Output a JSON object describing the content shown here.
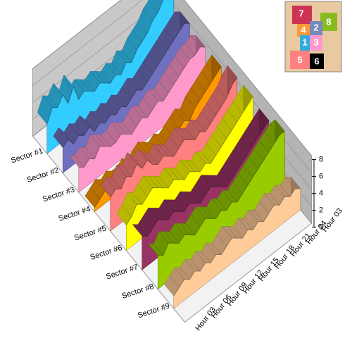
{
  "chart_data": {
    "type": "ribbon3d",
    "categories": [
      "Hour 03",
      null,
      null,
      "Hour 06",
      null,
      null,
      "Hour 09",
      null,
      null,
      "Hour 12",
      null,
      null,
      "Hour 15",
      null,
      null,
      "Hour 18",
      null,
      null,
      "Hour 21",
      null,
      null,
      "Hour 24",
      null,
      null,
      "Hour 03"
    ],
    "series": [
      {
        "name": "Sector #1",
        "color": "#33ccff",
        "values": [
          3.5,
          5,
          4.5,
          5.5,
          4,
          5.5,
          3.5,
          4,
          3.5,
          3,
          3.5,
          3,
          2.5,
          3,
          2.5,
          3.5,
          3,
          4,
          4.5,
          5,
          6,
          6.5,
          7.5,
          7,
          7.5
        ]
      },
      {
        "name": "Sector #2",
        "color": "#7070c0",
        "values": [
          3,
          3.5,
          2.5,
          3,
          2.5,
          3,
          2,
          2.5,
          2,
          2.5,
          2,
          2.5,
          2,
          2.5,
          3,
          2.5,
          3,
          3.5,
          4,
          4.5,
          5,
          5.5,
          6,
          6.5,
          6
        ]
      },
      {
        "name": "Sector #3",
        "color": "#ff99cc",
        "values": [
          3,
          2.5,
          3,
          2.5,
          3.5,
          3,
          2.5,
          2.5,
          3,
          2.5,
          2,
          2.5,
          3,
          2.5,
          3,
          3.5,
          3,
          3.5,
          4,
          4.5,
          5,
          5.5,
          5.5,
          6,
          5.5
        ]
      },
      {
        "name": "Sector #4",
        "color": "#ff9900",
        "values": [
          0.5,
          1,
          1.5,
          1,
          1.5,
          1,
          1,
          1.5,
          1,
          1.5,
          2,
          1.5,
          1,
          1.5,
          1,
          1.5,
          2,
          2.5,
          2,
          3,
          3.5,
          4,
          4.5,
          5,
          5.5
        ]
      },
      {
        "name": "Sector #5",
        "color": "#ff8080",
        "values": [
          4,
          4.5,
          4,
          5,
          4.5,
          5.5,
          4.5,
          5,
          4,
          3.5,
          4,
          3.5,
          3,
          3.5,
          4,
          3.5,
          3,
          3.5,
          3,
          3.5,
          4,
          4.5,
          5,
          6,
          6.5
        ]
      },
      {
        "name": "Sector #6",
        "color": "#ffff00",
        "values": [
          3,
          3.5,
          4.5,
          4,
          4.5,
          5,
          4.5,
          4,
          3.5,
          4,
          3.5,
          3,
          3.5,
          3,
          2.5,
          3,
          2.5,
          3,
          3.5,
          4,
          4.5,
          5,
          5.5,
          6,
          6.5
        ]
      },
      {
        "name": "Sector #7",
        "color": "#993366",
        "values": [
          4,
          3.5,
          4,
          4.5,
          4,
          3.5,
          4,
          3.5,
          3,
          3.5,
          3,
          2.5,
          3,
          3.5,
          3,
          2.5,
          2,
          2.5,
          3,
          3.5,
          4,
          4.5,
          5,
          5.5,
          6
        ]
      },
      {
        "name": "Sector #8",
        "color": "#99cc00",
        "values": [
          4,
          3.5,
          4.5,
          4,
          3.5,
          4,
          3.5,
          3,
          3.5,
          4,
          3.5,
          3,
          3.5,
          3,
          3.5,
          3,
          3.5,
          4,
          4.5,
          5,
          5.5,
          6,
          6.5,
          7,
          7
        ]
      },
      {
        "name": "Sector #9",
        "color": "#ffcc99",
        "values": [
          1.5,
          2,
          2.5,
          2,
          2.5,
          2,
          2.5,
          2,
          2.5,
          2,
          2.5,
          3,
          2.5,
          2,
          2.5,
          2,
          2.5,
          2,
          2.5,
          3,
          2.5,
          3,
          2.5,
          3,
          2.5
        ]
      }
    ],
    "ylim": [
      0,
      8
    ],
    "yticks": [
      0,
      2,
      4,
      6,
      8
    ],
    "grid": true,
    "inset_labels": [
      "7",
      "8",
      "4",
      "2",
      "1",
      "3",
      "5",
      "6"
    ]
  }
}
